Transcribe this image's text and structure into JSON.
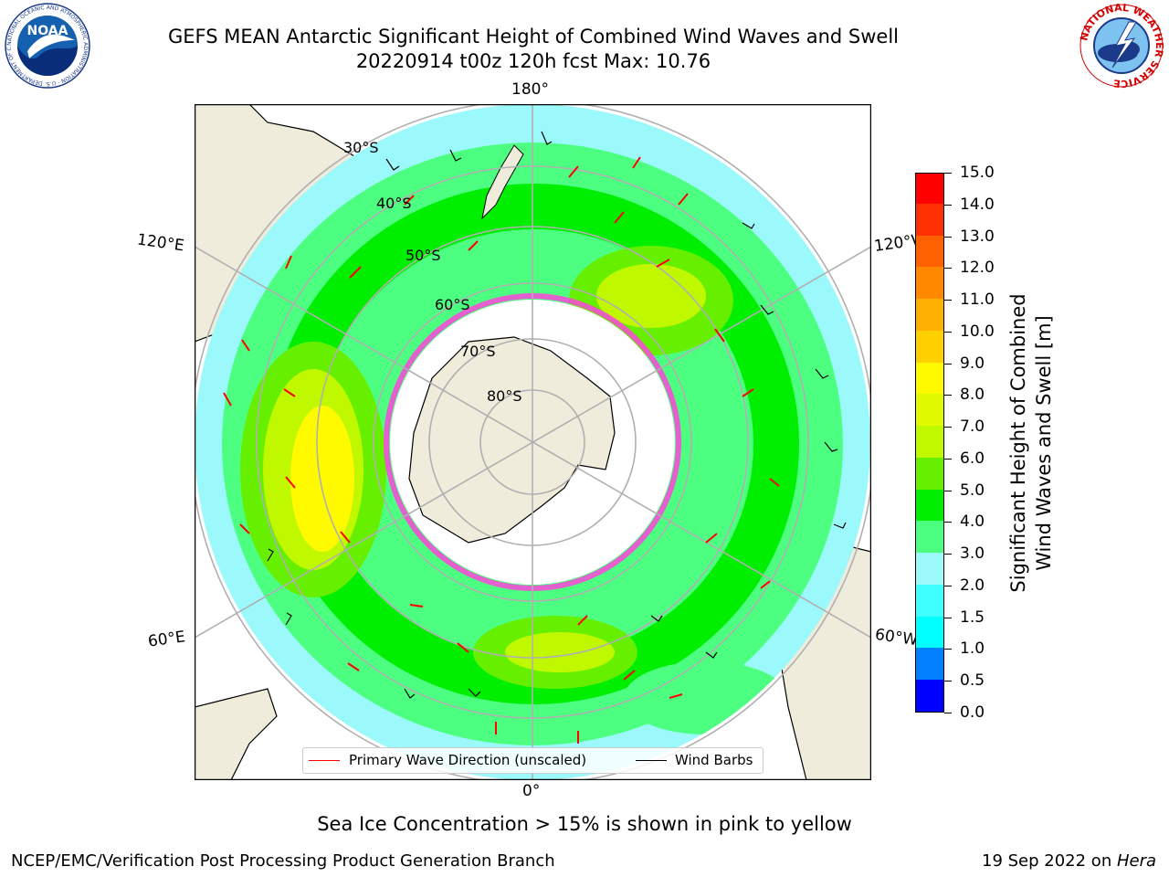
{
  "title": {
    "line1": "GEFS MEAN Antarctic Significant Height of Combined Wind Waves and Swell",
    "line2": "20220914 t00z 120h fcst   Max: 10.76"
  },
  "map": {
    "projection": "south-polar-stereographic",
    "longitude_labels": {
      "top": "180°",
      "bottom": "0°",
      "left_upper": "120°E",
      "left_lower": "60°E",
      "right_upper": "120°W",
      "right_lower": "60°W"
    },
    "latitude_labels": [
      "30°S",
      "40°S",
      "50°S",
      "60°S",
      "70°S",
      "80°S"
    ],
    "colors": {
      "land": "#efecdc",
      "ocean_fill": "#9cf9fb",
      "grid": "#b0b0b0",
      "wave_arrow": "#ff0000",
      "wind_barb": "#000000",
      "sea_ice": "#ff44dd"
    }
  },
  "legend": {
    "wave_direction_label": "Primary Wave Direction (unscaled)",
    "wind_barbs_label": "Wind Barbs",
    "wave_direction_color": "#ff0000",
    "wind_barbs_color": "#000000"
  },
  "colorbar": {
    "label_line1": "Significant Height of Combined",
    "label_line2": "Wind Waves and Swell [m]",
    "tick_labels": [
      "0.0",
      "0.5",
      "1.0",
      "1.5",
      "2.0",
      "3.0",
      "4.0",
      "5.0",
      "6.0",
      "7.0",
      "8.0",
      "9.0",
      "10.0",
      "11.0",
      "12.0",
      "13.0",
      "14.0",
      "15.0"
    ],
    "colors": [
      "#0000ff",
      "#0080ff",
      "#00ffff",
      "#40ffff",
      "#9cfafa",
      "#4dff80",
      "#00ee00",
      "#66f000",
      "#c0f800",
      "#e0fb00",
      "#fffa00",
      "#ffd000",
      "#ffb000",
      "#ff8800",
      "#ff6000",
      "#ff3000",
      "#ff0000"
    ]
  },
  "note": "Sea Ice Concentration > 15% is shown in pink to yellow",
  "footer": {
    "left": "NCEP/EMC/Verification Post Processing Product Generation Branch",
    "right_prefix": "19 Sep 2022 on ",
    "right_host": "Hera"
  },
  "logos": {
    "left": {
      "text": "NOAA",
      "ring_text": "NATIONAL OCEANIC AND ATMOSPHERIC ADMINISTRATION · U.S. DEPARTMENT OF COMMERCE"
    },
    "right": {
      "ring_text": "NATIONAL WEATHER SERVICE"
    }
  }
}
